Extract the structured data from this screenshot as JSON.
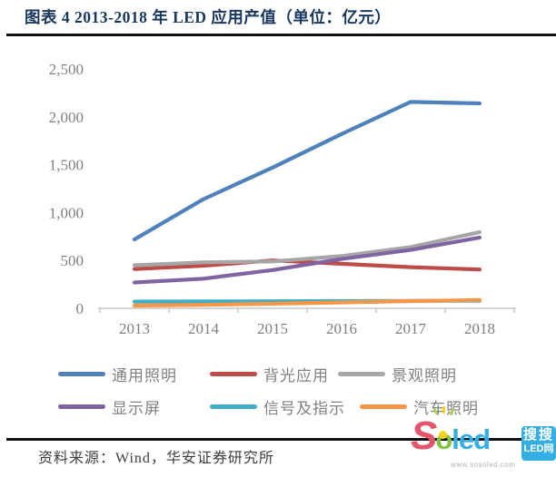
{
  "header": {
    "title": "图表 4 2013-2018 年 LED 应用产值（单位：亿元）"
  },
  "chart_data": {
    "type": "line",
    "title": "图表 4 2013-2018 年 LED 应用产值（单位：亿元）",
    "unit": "亿元",
    "categories": [
      "2013",
      "2014",
      "2015",
      "2016",
      "2017",
      "2018"
    ],
    "series": [
      {
        "name": "通用照明",
        "color": "#4F81BD",
        "values": [
          720,
          1140,
          1470,
          1820,
          2155,
          2140
        ]
      },
      {
        "name": "背光应用",
        "color": "#BE4B48",
        "values": [
          410,
          445,
          500,
          465,
          430,
          405
        ]
      },
      {
        "name": "景观照明",
        "color": "#A6A6A6",
        "values": [
          450,
          480,
          490,
          545,
          640,
          795
        ]
      },
      {
        "name": "显示屏",
        "color": "#8064A2",
        "values": [
          270,
          310,
          400,
          515,
          610,
          740
        ]
      },
      {
        "name": "信号及指示",
        "color": "#42AEC6",
        "values": [
          70,
          72,
          74,
          76,
          78,
          80
        ]
      },
      {
        "name": "汽车照明",
        "color": "#F79646",
        "values": [
          28,
          36,
          48,
          62,
          76,
          86
        ]
      }
    ],
    "xlabel": "",
    "ylabel": "",
    "ylim": [
      0,
      2500
    ],
    "yticks": [
      0,
      500,
      1000,
      1500,
      2000,
      2500
    ],
    "ytick_labels": [
      "0",
      "500",
      "1,000",
      "1,500",
      "2,000",
      "2,500"
    ],
    "grid": false,
    "legend_position": "bottom"
  },
  "footer": {
    "source": "资料来源：Wind，华安证券研究所"
  },
  "logo": {
    "s": "S",
    "o": "o",
    "led": "led",
    "badge_top": "搜搜",
    "badge_bottom": "LED网",
    "url": "www.sosoled.com"
  }
}
